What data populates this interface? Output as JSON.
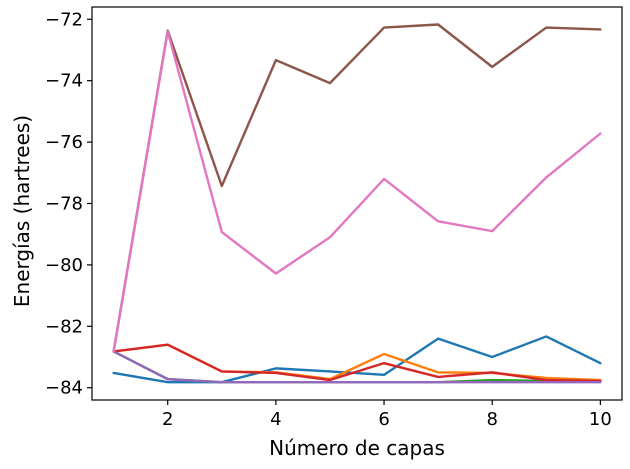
{
  "chart_data": {
    "type": "line",
    "title": "",
    "xlabel": "Número de capas",
    "ylabel": "Energías (hartrees)",
    "xlim": [
      0.6,
      10.4
    ],
    "ylim": [
      -84.4,
      -71.6
    ],
    "xticks": [
      2,
      4,
      6,
      8,
      10
    ],
    "yticks": [
      -84,
      -82,
      -80,
      -78,
      -76,
      -74,
      -72
    ],
    "grid": false,
    "x": [
      1,
      2,
      3,
      4,
      5,
      6,
      7,
      8,
      9,
      10
    ],
    "series": [
      {
        "color": "#1f77b4",
        "values": [
          -83.52,
          -83.82,
          -83.82,
          -83.37,
          -83.47,
          -83.58,
          -82.4,
          -83.0,
          -82.33,
          -83.2
        ]
      },
      {
        "color": "#ff7f0e",
        "values": [
          -82.82,
          -82.6,
          -83.47,
          -83.5,
          -83.72,
          -82.9,
          -83.5,
          -83.52,
          -83.68,
          -83.75
        ]
      },
      {
        "color": "#2ca02c",
        "values": [
          -82.82,
          -83.72,
          -83.82,
          -83.82,
          -83.82,
          -83.82,
          -83.82,
          -83.75,
          -83.78,
          -83.8
        ]
      },
      {
        "color": "#d62728",
        "values": [
          -82.82,
          -82.6,
          -83.47,
          -83.52,
          -83.75,
          -83.2,
          -83.65,
          -83.5,
          -83.75,
          -83.78
        ]
      },
      {
        "color": "#9467bd",
        "values": [
          -82.82,
          -83.72,
          -83.82,
          -83.82,
          -83.82,
          -83.82,
          -83.82,
          -83.82,
          -83.82,
          -83.82
        ]
      },
      {
        "color": "#8c564b",
        "values": [
          -82.82,
          -72.37,
          -77.43,
          -73.33,
          -74.08,
          -72.27,
          -72.17,
          -73.55,
          -72.27,
          -72.33
        ]
      },
      {
        "color": "#e377c2",
        "values": [
          -82.82,
          -72.4,
          -78.93,
          -80.28,
          -79.1,
          -77.2,
          -78.58,
          -78.9,
          -77.15,
          -75.72
        ]
      }
    ]
  }
}
